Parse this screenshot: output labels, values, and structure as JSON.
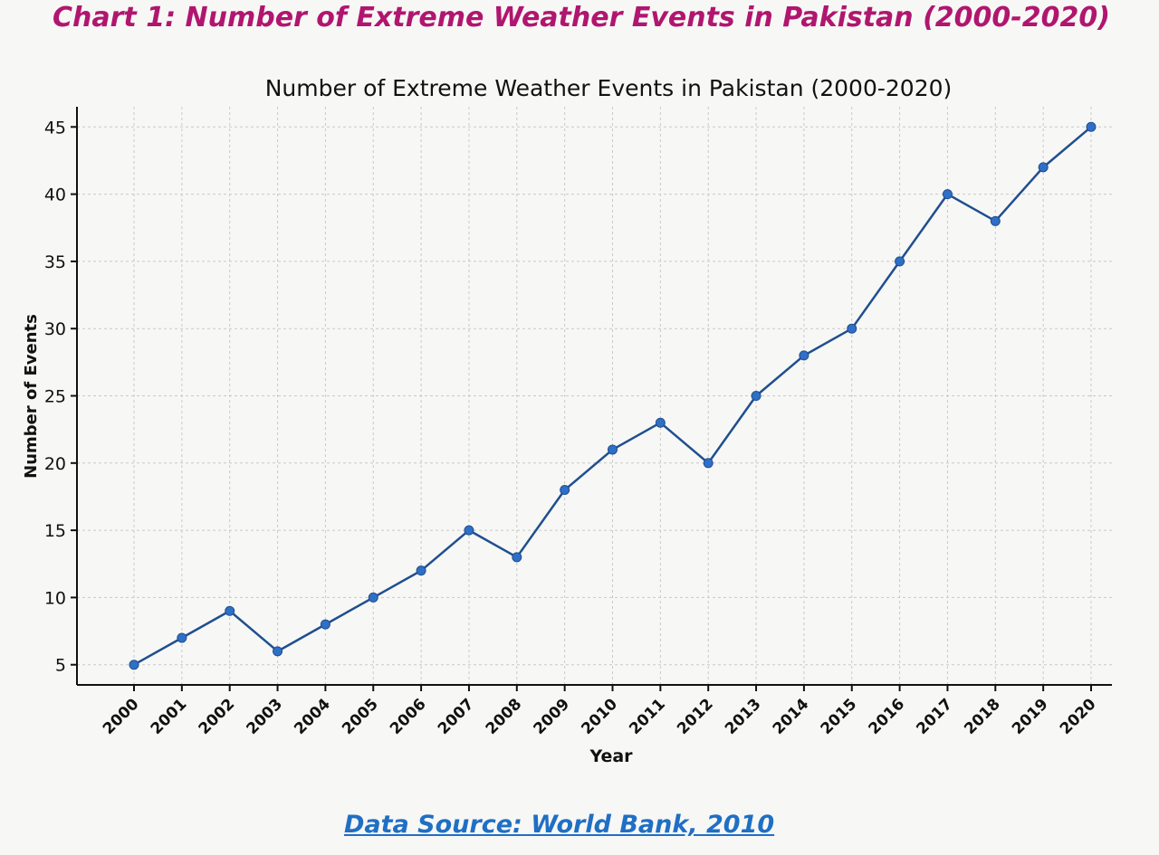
{
  "heading": "Chart 1: Number of Extreme Weather Events in Pakistan (2000-2020)",
  "source": "Data Source: World Bank, 2010",
  "chart_data": {
    "type": "line",
    "title": "Number of Extreme Weather Events in Pakistan (2000-2020)",
    "xlabel": "Year",
    "ylabel": "Number of Events",
    "x": [
      "2000",
      "2001",
      "2002",
      "2003",
      "2004",
      "2005",
      "2006",
      "2007",
      "2008",
      "2009",
      "2010",
      "2011",
      "2012",
      "2013",
      "2014",
      "2015",
      "2016",
      "2017",
      "2018",
      "2019",
      "2020"
    ],
    "series": [
      {
        "values": [
          5,
          7,
          9,
          6,
          8,
          10,
          12,
          15,
          13,
          18,
          21,
          23,
          20,
          25,
          28,
          30,
          35,
          40,
          38,
          42,
          45
        ]
      }
    ],
    "yticks": [
      5,
      10,
      15,
      20,
      25,
      30,
      35,
      40,
      45
    ],
    "ylim": [
      3.5,
      46.5
    ],
    "grid": true,
    "line_color": "#1f4f8f",
    "marker_color": "#2f6fc7",
    "grid_color": "#c9c9c9"
  }
}
